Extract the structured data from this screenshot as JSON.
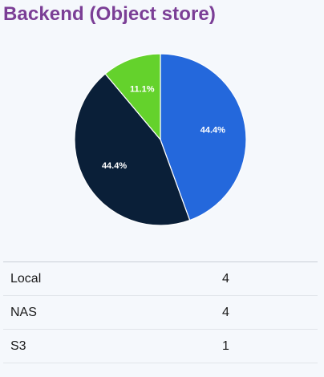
{
  "title": "Backend (Object store)",
  "colors": {
    "title": "#7b3e96",
    "background": "#f5f8fc"
  },
  "chart_data": {
    "type": "pie",
    "categories": [
      "Local",
      "NAS",
      "S3"
    ],
    "values": [
      4,
      4,
      1
    ],
    "slice_labels": [
      "44.4%",
      "44.4%",
      "11.1%"
    ],
    "colors": [
      "#2468dc",
      "#0a1f38",
      "#64d22c"
    ],
    "start_angle_deg": 0,
    "direction": "clockwise"
  },
  "table": {
    "rows": [
      {
        "name": "Local",
        "count": "4"
      },
      {
        "name": "NAS",
        "count": "4"
      },
      {
        "name": "S3",
        "count": "1"
      }
    ]
  }
}
